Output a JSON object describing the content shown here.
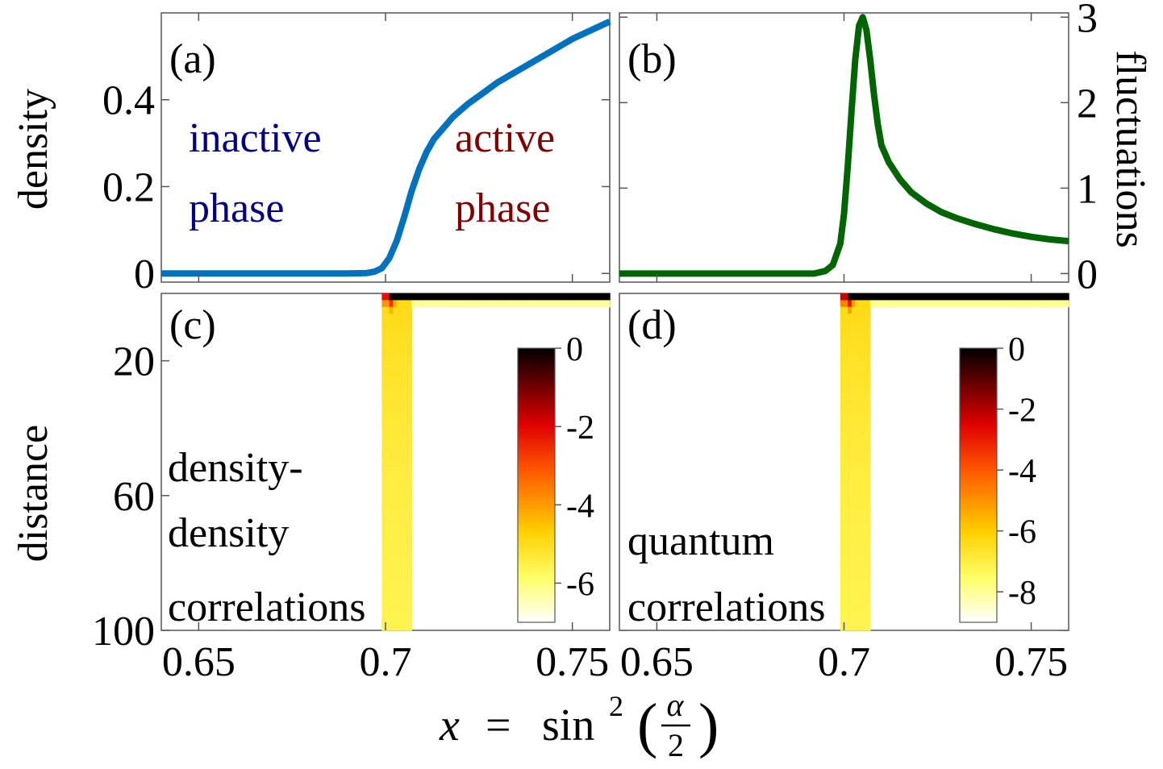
{
  "chart_data": [
    {
      "panel": "(a)",
      "type": "line",
      "title": "",
      "xlabel": "",
      "ylabel": "density",
      "xlim": [
        0.64,
        0.76
      ],
      "ylim": [
        -0.02,
        0.6
      ],
      "xticks": [
        0.65,
        0.7,
        0.75
      ],
      "yticks": [
        0,
        0.2,
        0.4
      ],
      "ytick_labels": [
        "0",
        "0.2",
        "0.4"
      ],
      "color": "#0072BD",
      "x": [
        0.64,
        0.69,
        0.695,
        0.697,
        0.699,
        0.701,
        0.703,
        0.705,
        0.707,
        0.709,
        0.711,
        0.713,
        0.715,
        0.718,
        0.722,
        0.726,
        0.73,
        0.735,
        0.74,
        0.745,
        0.75,
        0.755,
        0.76
      ],
      "values": [
        0,
        0,
        0.001,
        0.004,
        0.012,
        0.035,
        0.075,
        0.13,
        0.19,
        0.24,
        0.28,
        0.31,
        0.33,
        0.36,
        0.39,
        0.415,
        0.44,
        0.465,
        0.49,
        0.515,
        0.54,
        0.56,
        0.58
      ],
      "annotations": [
        {
          "text": "inactive",
          "color": "#000080"
        },
        {
          "text": "phase",
          "color": "#000080"
        },
        {
          "text": "active",
          "color": "#800000"
        },
        {
          "text": "phase",
          "color": "#800000"
        }
      ]
    },
    {
      "panel": "(b)",
      "type": "line",
      "title": "",
      "xlabel": "",
      "ylabel": "fluctuations",
      "xlim": [
        0.64,
        0.76
      ],
      "ylim": [
        -0.1,
        3.05
      ],
      "yticks": [
        0,
        1,
        2,
        3
      ],
      "ytick_labels": [
        "0",
        "1",
        "2",
        "3"
      ],
      "color": "#006400",
      "x": [
        0.64,
        0.692,
        0.695,
        0.697,
        0.699,
        0.7,
        0.701,
        0.702,
        0.703,
        0.704,
        0.705,
        0.706,
        0.707,
        0.708,
        0.709,
        0.71,
        0.712,
        0.715,
        0.718,
        0.722,
        0.726,
        0.73,
        0.735,
        0.74,
        0.745,
        0.75,
        0.755,
        0.76
      ],
      "values": [
        0,
        0,
        0.03,
        0.1,
        0.35,
        0.7,
        1.25,
        1.9,
        2.5,
        2.9,
        3.0,
        2.85,
        2.5,
        2.1,
        1.75,
        1.5,
        1.3,
        1.1,
        0.95,
        0.82,
        0.72,
        0.65,
        0.58,
        0.52,
        0.47,
        0.43,
        0.4,
        0.38
      ]
    },
    {
      "panel": "(c)",
      "type": "heatmap",
      "title": "",
      "xlabel": "",
      "ylabel": "distance",
      "xlim": [
        0.64,
        0.76
      ],
      "ylim": [
        100,
        0
      ],
      "yticks": [
        20,
        60,
        100
      ],
      "ytick_labels": [
        "20",
        "60",
        "100"
      ],
      "colorbar": {
        "ticks": [
          0,
          -2,
          -4,
          -6
        ],
        "labels": [
          "0",
          "-2",
          "-4",
          "-6"
        ],
        "range": [
          -7,
          0
        ]
      },
      "colormap": "hot",
      "critical_x": 0.701,
      "annotations": [
        "density-",
        "density",
        "correlations"
      ]
    },
    {
      "panel": "(d)",
      "type": "heatmap",
      "title": "",
      "xlabel": "",
      "ylabel": "",
      "xlim": [
        0.64,
        0.76
      ],
      "ylim": [
        100,
        0
      ],
      "colorbar": {
        "ticks": [
          0,
          -2,
          -4,
          -6,
          -8
        ],
        "labels": [
          "0",
          "-2",
          "-4",
          "-6",
          "-8"
        ],
        "range": [
          -9,
          0
        ]
      },
      "colormap": "hot",
      "critical_x": 0.701,
      "annotations": [
        "quantum",
        "correlations"
      ]
    }
  ],
  "shared": {
    "xtick_labels": [
      "0.65",
      "0.7",
      "0.75"
    ],
    "xlabel_parts": {
      "x": "x",
      "eq": "=",
      "func": "sin",
      "exp": "2",
      "num": "α",
      "den": "2",
      "lparen": "(",
      "rparen": ")"
    }
  }
}
